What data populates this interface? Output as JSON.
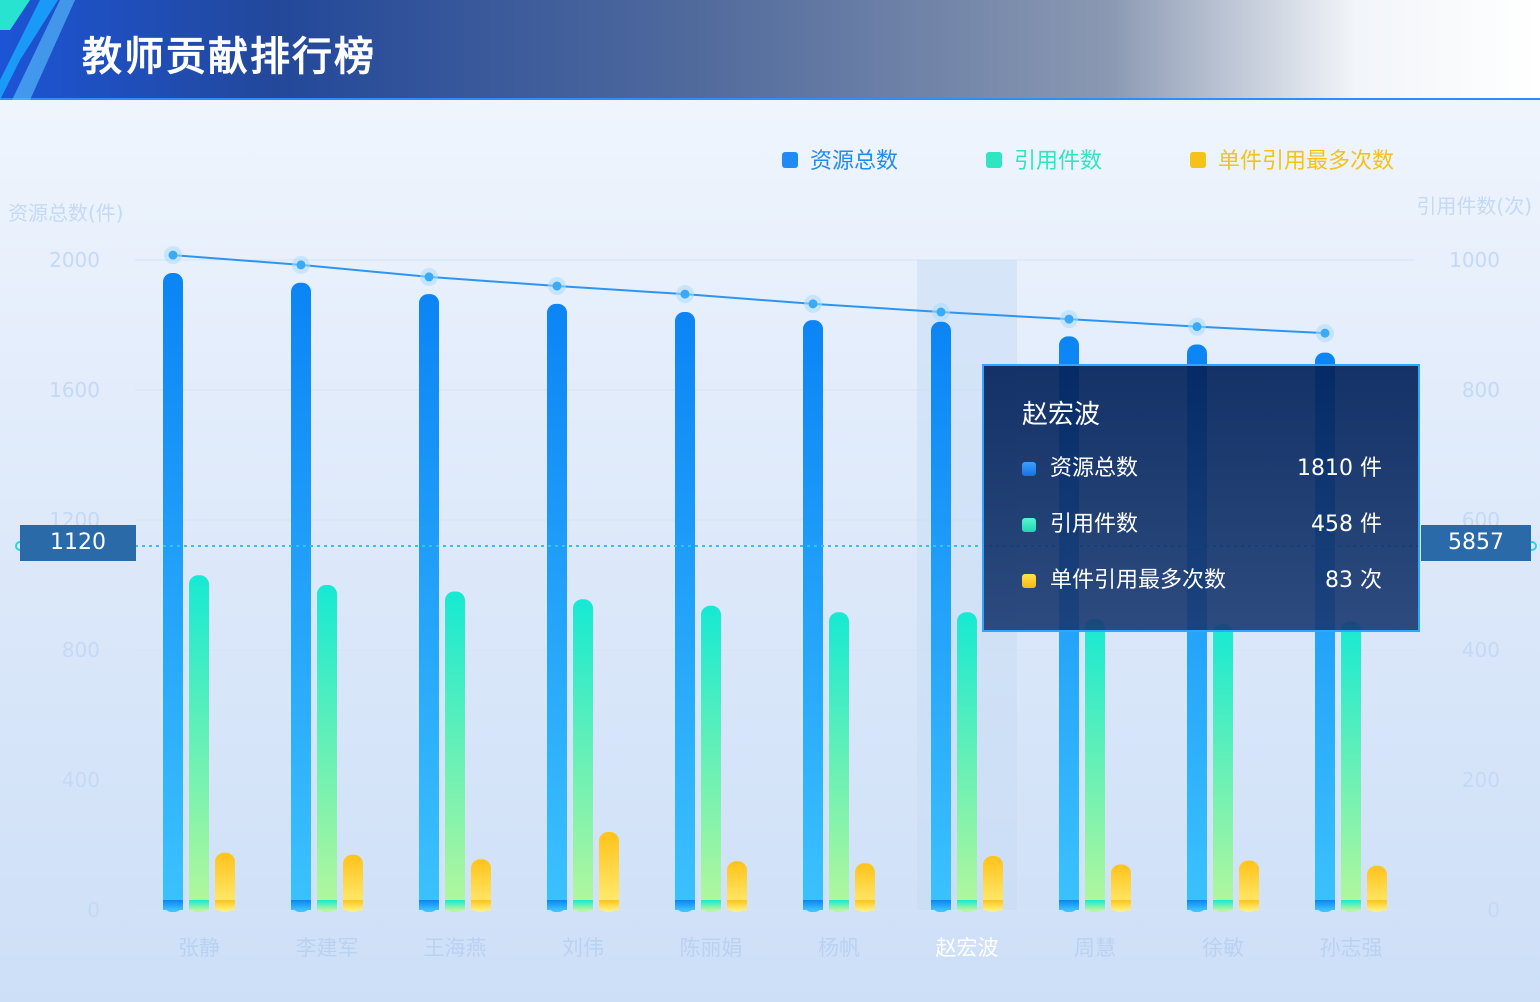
{
  "header": {
    "title": "教师贡献排行榜"
  },
  "legend": [
    {
      "label": "资源总数",
      "color": "#1f8cf5"
    },
    {
      "label": "引用件数",
      "color": "#2ee6c2"
    },
    {
      "label": "单件引用最多次数",
      "color": "#f5c21a"
    }
  ],
  "axes": {
    "left_name": "资源总数(件)",
    "right_name": "引用件数(次)",
    "left_ticks": [
      "2000",
      "1600",
      "1200",
      "800",
      "400",
      "0"
    ],
    "right_ticks": [
      "1000",
      "800",
      "600",
      "400",
      "200",
      "0"
    ]
  },
  "pointer": {
    "left_value": "1120",
    "right_value": "5857"
  },
  "chart_data": {
    "type": "bar",
    "categories": [
      "张静",
      "李建军",
      "王海燕",
      "刘伟",
      "陈丽娟",
      "杨帆",
      "赵宏波",
      "周慧",
      "徐敏",
      "孙志强"
    ],
    "series": [
      {
        "name": "资源总数",
        "axis": "left",
        "values": [
          1960,
          1930,
          1895,
          1865,
          1840,
          1815,
          1810,
          1765,
          1740,
          1715
        ]
      },
      {
        "name": "引用件数",
        "axis": "right",
        "values": [
          515,
          500,
          490,
          478,
          468,
          458,
          458,
          448,
          440,
          444
        ]
      },
      {
        "name": "单件引用最多次数",
        "axis": "right",
        "values": [
          88,
          85,
          78,
          120,
          75,
          72,
          83,
          70,
          76,
          68
        ]
      }
    ],
    "line": {
      "axis": "left",
      "values": [
        2015,
        1985,
        1948,
        1920,
        1895,
        1865,
        1840,
        1818,
        1795,
        1775
      ]
    },
    "ylim_left": [
      0,
      2000
    ],
    "ylim_right": [
      0,
      1000
    ],
    "highlight_category": "赵宏波",
    "grid": true,
    "legend_position": "top-right"
  },
  "tooltip": {
    "name": "赵宏波",
    "rows": [
      {
        "label": "资源总数",
        "value": "1810 件"
      },
      {
        "label": "引用件数",
        "value": "458 件"
      },
      {
        "label": "单件引用最多次数",
        "value": "83 次"
      }
    ]
  }
}
